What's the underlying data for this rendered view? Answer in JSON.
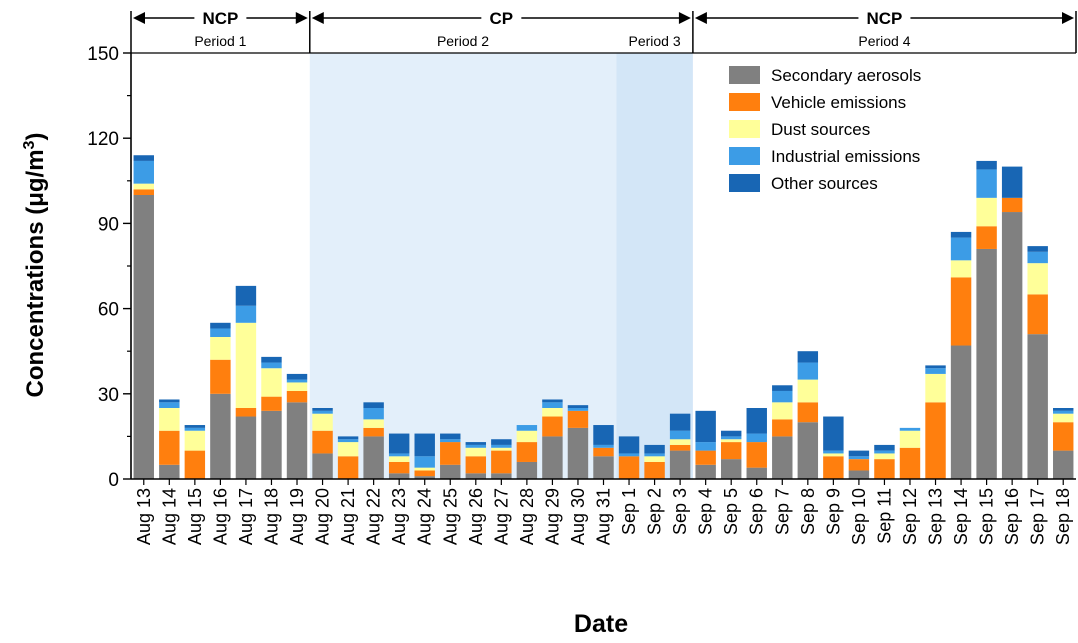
{
  "chart_data": {
    "type": "bar",
    "stacked": true,
    "xlabel": "Date",
    "ylabel": "Concentrations (μg/m",
    "ylabel_sup": "3",
    "ylabel_close": ")",
    "ylim": [
      0,
      150
    ],
    "yticks": [
      "0",
      "30",
      "60",
      "90",
      "120",
      "150"
    ],
    "legend_position": "top-right",
    "categories": [
      "Aug 13",
      "Aug 14",
      "Aug 15",
      "Aug 16",
      "Aug 17",
      "Aug 18",
      "Aug 19",
      "Aug 20",
      "Aug 21",
      "Aug 22",
      "Aug 23",
      "Aug 24",
      "Aug 25",
      "Aug 26",
      "Aug 27",
      "Aug 28",
      "Aug 29",
      "Aug 30",
      "Aug 31",
      "Sep 1",
      "Sep 2",
      "Sep 3",
      "Sep 4",
      "Sep 5",
      "Sep 6",
      "Sep 7",
      "Sep 8",
      "Sep 9",
      "Sep 10",
      "Sep 11",
      "Sep 12",
      "Sep 13",
      "Sep 14",
      "Sep 15",
      "Sep 16",
      "Sep 17",
      "Sep 18"
    ],
    "series": [
      {
        "name": "Secondary aerosols",
        "color": "#808080",
        "values": [
          100,
          5,
          0,
          30,
          22,
          24,
          27,
          9,
          0,
          15,
          2,
          1,
          5,
          2,
          2,
          6,
          15,
          18,
          8,
          0,
          0,
          10,
          5,
          7,
          4,
          15,
          20,
          0,
          3,
          0,
          0,
          0,
          47,
          81,
          94,
          51,
          10
        ]
      },
      {
        "name": "Vehicle emissions",
        "color": "#ff7f0e",
        "values": [
          2,
          12,
          10,
          12,
          3,
          5,
          4,
          8,
          8,
          3,
          4,
          2,
          8,
          6,
          8,
          7,
          7,
          6,
          3,
          8,
          6,
          2,
          5,
          6,
          9,
          6,
          7,
          8,
          4,
          7,
          11,
          27,
          24,
          8,
          5,
          14,
          10
        ]
      },
      {
        "name": "Dust sources",
        "color": "#ffff99",
        "values": [
          2,
          8,
          7,
          8,
          30,
          10,
          3,
          6,
          5,
          3,
          2,
          1,
          0,
          3,
          1,
          4,
          3,
          0,
          0,
          0,
          2,
          2,
          0,
          1,
          0,
          6,
          8,
          1,
          0,
          2,
          6,
          10,
          6,
          10,
          0,
          11,
          3
        ]
      },
      {
        "name": "Industrial emissions",
        "color": "#3c9ce6",
        "values": [
          8,
          2,
          1,
          3,
          6,
          2,
          1,
          1,
          1,
          4,
          1,
          4,
          1,
          1,
          1,
          2,
          2,
          1,
          1,
          1,
          1,
          3,
          3,
          1,
          3,
          4,
          6,
          1,
          1,
          1,
          1,
          2,
          8,
          10,
          0,
          4,
          1
        ]
      },
      {
        "name": "Other sources",
        "color": "#1866b4",
        "values": [
          2,
          1,
          1,
          2,
          7,
          2,
          2,
          1,
          1,
          2,
          7,
          8,
          2,
          1,
          2,
          0,
          1,
          1,
          7,
          6,
          3,
          6,
          11,
          2,
          9,
          2,
          4,
          12,
          2,
          2,
          0,
          1,
          2,
          3,
          11,
          2,
          1
        ]
      }
    ],
    "periods": [
      {
        "name": "NCP",
        "label": "Period 1",
        "start_index": 0,
        "end_index": 6
      },
      {
        "name": "CP",
        "label": "Period 2",
        "start_index": 7,
        "end_index": 18,
        "shade": "#e3effa"
      },
      {
        "name": "",
        "label": "Period 3",
        "start_index": 19,
        "end_index": 21,
        "shade": "#d3e6f7"
      },
      {
        "name": "NCP",
        "label": "Period 4",
        "start_index": 22,
        "end_index": 36
      }
    ]
  }
}
